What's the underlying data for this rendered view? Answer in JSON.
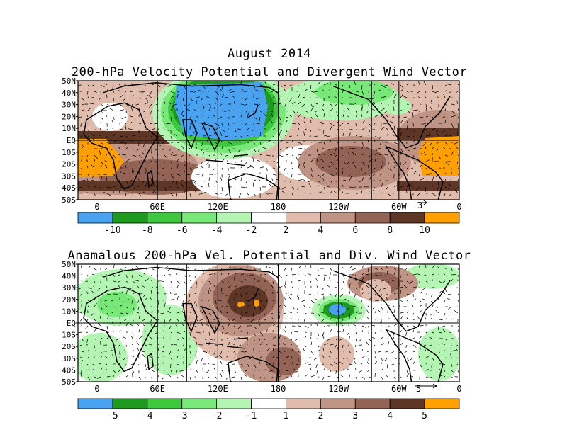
{
  "header": {
    "date": "August 2014",
    "title_top": "200-hPa Velocity Potential and Divergent Wind Vector",
    "title_bottom": "Anamalous 200-hPa Vel. Potential and Div. Wind Vector"
  },
  "lat_ticks": [
    "50N",
    "40N",
    "30N",
    "20N",
    "10N",
    "EQ",
    "10S",
    "20S",
    "30S",
    "40S",
    "50S"
  ],
  "lon_ticks": [
    "0",
    "60E",
    "120E",
    "180",
    "120W",
    "60W",
    "0"
  ],
  "top_panel": {
    "ref_vector_label": "3",
    "colorbar": {
      "colors": [
        "#4aa3f0",
        "#1e9a1e",
        "#3ec83e",
        "#78e878",
        "#b4f5b4",
        "#ffffff",
        "#e0bcac",
        "#bf9484",
        "#936456",
        "#5e3626",
        "#ff9f00"
      ],
      "labels": [
        "-10",
        "-8",
        "-6",
        "-4",
        "-2",
        "2",
        "4",
        "6",
        "8",
        "10"
      ]
    }
  },
  "bottom_panel": {
    "ref_vector_label": "5",
    "colorbar": {
      "colors": [
        "#4aa3f0",
        "#1e9a1e",
        "#3ec83e",
        "#78e878",
        "#b4f5b4",
        "#ffffff",
        "#e0bcac",
        "#bf9484",
        "#936456",
        "#5e3626",
        "#ff9f00"
      ],
      "labels": [
        "-5",
        "-4",
        "-3",
        "-2",
        "-1",
        "1",
        "2",
        "3",
        "4",
        "5"
      ]
    }
  }
}
